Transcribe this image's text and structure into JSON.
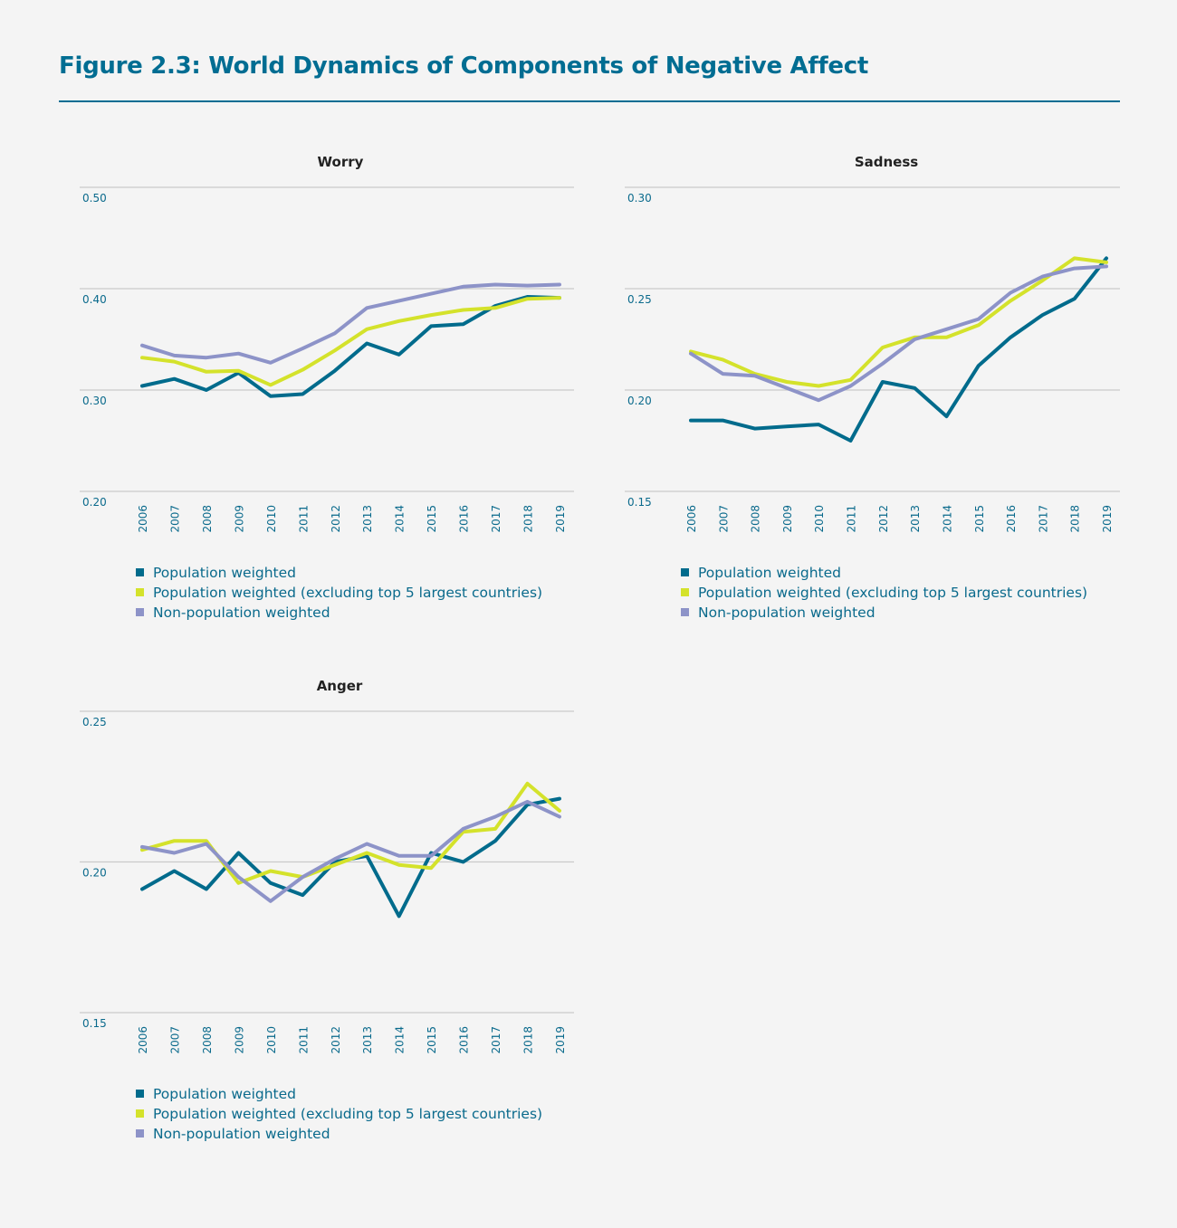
{
  "title": "Figure 2.3: World Dynamics of Components of Negative Affect",
  "colors": {
    "population_weighted": "#006b8c",
    "excluding_top5": "#d4e22b",
    "non_population_weighted": "#8d93c8",
    "title": "#006d92"
  },
  "chart_data": [
    {
      "type": "line",
      "title": "Worry",
      "ylim": [
        0.2,
        0.5
      ],
      "yticks": [
        "0.20",
        "0.30",
        "0.40",
        "0.50"
      ],
      "grid": true,
      "legend_position": "bottom",
      "x": [
        "2006",
        "2007",
        "2008",
        "2009",
        "2010",
        "2011",
        "2012",
        "2013",
        "2014",
        "2015",
        "2016",
        "2017",
        "2018",
        "2019"
      ],
      "series": [
        {
          "name": "Population weighted",
          "color_key": "population_weighted",
          "values": [
            0.304,
            0.311,
            0.3,
            0.317,
            0.294,
            0.296,
            0.319,
            0.346,
            0.335,
            0.363,
            0.365,
            0.383,
            0.392,
            0.391
          ]
        },
        {
          "name": "Population weighted (excluding top 5 largest countries)",
          "color_key": "excluding_top5",
          "values": [
            0.332,
            0.328,
            0.318,
            0.319,
            0.305,
            0.32,
            0.339,
            0.36,
            0.368,
            0.374,
            0.379,
            0.381,
            0.39,
            0.391
          ]
        },
        {
          "name": "Non-population weighted",
          "color_key": "non_population_weighted",
          "values": [
            0.344,
            0.334,
            0.332,
            0.336,
            0.327,
            0.341,
            0.356,
            0.381,
            0.388,
            0.395,
            0.402,
            0.404,
            0.403,
            0.404
          ]
        }
      ]
    },
    {
      "type": "line",
      "title": "Sadness",
      "ylim": [
        0.15,
        0.3
      ],
      "yticks": [
        "0.15",
        "0.20",
        "0.25",
        "0.30"
      ],
      "grid": true,
      "legend_position": "bottom",
      "x": [
        "2006",
        "2007",
        "2008",
        "2009",
        "2010",
        "2011",
        "2012",
        "2013",
        "2014",
        "2015",
        "2016",
        "2017",
        "2018",
        "2019"
      ],
      "series": [
        {
          "name": "Population weighted",
          "color_key": "population_weighted",
          "values": [
            0.185,
            0.185,
            0.181,
            0.182,
            0.183,
            0.175,
            0.204,
            0.201,
            0.187,
            0.212,
            0.226,
            0.237,
            0.245,
            0.265
          ]
        },
        {
          "name": "Population weighted (excluding top 5 largest countries)",
          "color_key": "excluding_top5",
          "values": [
            0.219,
            0.215,
            0.208,
            0.204,
            0.202,
            0.205,
            0.221,
            0.226,
            0.226,
            0.232,
            0.244,
            0.254,
            0.265,
            0.263
          ]
        },
        {
          "name": "Non-population weighted",
          "color_key": "non_population_weighted",
          "values": [
            0.218,
            0.208,
            0.207,
            0.201,
            0.195,
            0.202,
            0.213,
            0.225,
            0.23,
            0.235,
            0.248,
            0.256,
            0.26,
            0.261
          ]
        }
      ]
    },
    {
      "type": "line",
      "title": "Anger",
      "ylim": [
        0.15,
        0.25
      ],
      "yticks": [
        "0.15",
        "0.20",
        "0.25"
      ],
      "grid": true,
      "legend_position": "bottom",
      "x": [
        "2006",
        "2007",
        "2008",
        "2009",
        "2010",
        "2011",
        "2012",
        "2013",
        "2014",
        "2015",
        "2016",
        "2017",
        "2018",
        "2019"
      ],
      "series": [
        {
          "name": "Population weighted",
          "color_key": "population_weighted",
          "values": [
            0.191,
            0.197,
            0.191,
            0.203,
            0.193,
            0.189,
            0.2,
            0.202,
            0.182,
            0.203,
            0.2,
            0.207,
            0.219,
            0.221
          ]
        },
        {
          "name": "Population weighted (excluding top 5 largest countries)",
          "color_key": "excluding_top5",
          "values": [
            0.204,
            0.207,
            0.207,
            0.193,
            0.197,
            0.195,
            0.199,
            0.203,
            0.199,
            0.198,
            0.21,
            0.211,
            0.226,
            0.217
          ]
        },
        {
          "name": "Non-population weighted",
          "color_key": "non_population_weighted",
          "values": [
            0.205,
            0.203,
            0.206,
            0.195,
            0.187,
            0.195,
            0.201,
            0.206,
            0.202,
            0.202,
            0.211,
            0.215,
            0.22,
            0.215
          ]
        }
      ]
    }
  ]
}
